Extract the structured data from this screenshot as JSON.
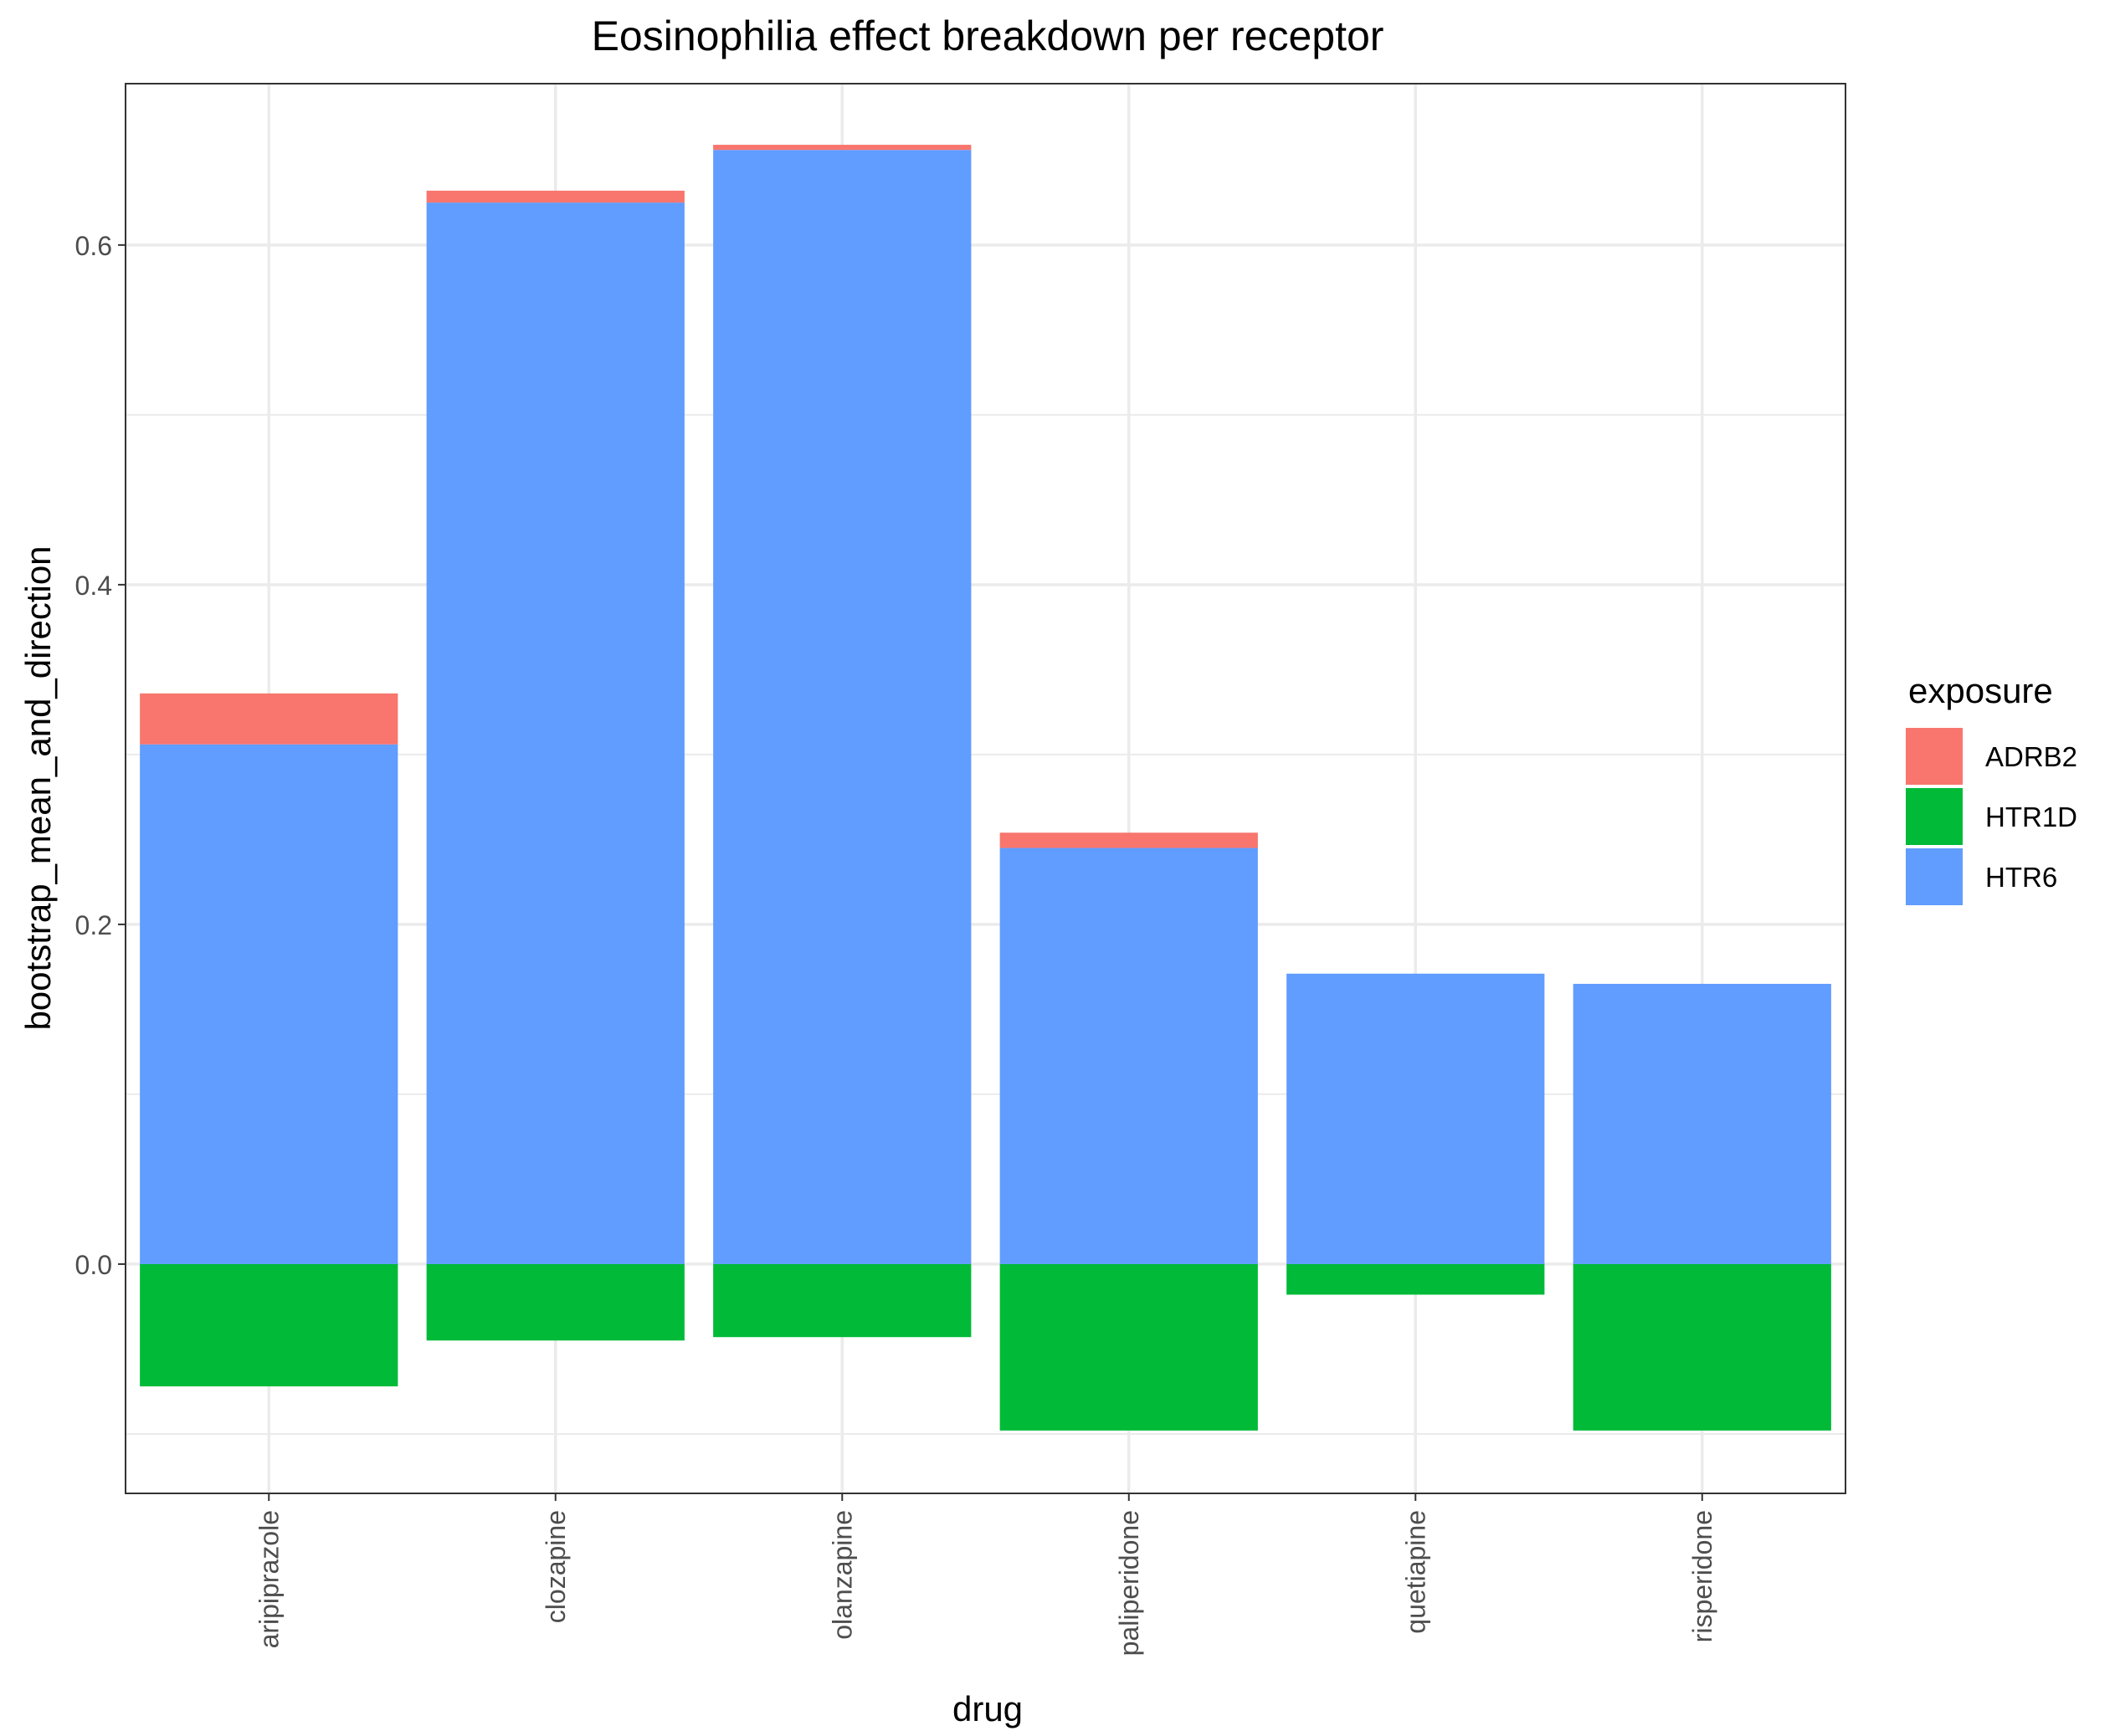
{
  "chart_data": {
    "type": "bar",
    "stacked": true,
    "title": "Eosinophilia effect breakdown per receptor",
    "xlabel": "drug",
    "ylabel": "bootstrap_mean_and_direction",
    "categories": [
      "aripiprazole",
      "clozapine",
      "olanzapine",
      "paliperidone",
      "quetiapine",
      "risperidone"
    ],
    "series": [
      {
        "name": "ADRB2",
        "color": "#F8766D",
        "values": [
          0.03,
          0.007,
          0.003,
          0.009,
          0.0,
          0.0
        ]
      },
      {
        "name": "HTR1D",
        "color": "#00BA38",
        "values": [
          -0.072,
          -0.045,
          -0.043,
          -0.098,
          -0.018,
          -0.098
        ]
      },
      {
        "name": "HTR6",
        "color": "#619CFF",
        "values": [
          0.306,
          0.625,
          0.656,
          0.245,
          0.171,
          0.165
        ]
      }
    ],
    "stack_order_positive": [
      "HTR6",
      "ADRB2"
    ],
    "ylim": [
      -0.135,
      0.695
    ],
    "yticks": [
      0.0,
      0.2,
      0.4,
      0.6
    ],
    "ytick_labels": [
      "0.0",
      "0.2",
      "0.4",
      "0.6"
    ],
    "y_minor_ticks": [
      -0.1,
      0.1,
      0.3,
      0.5
    ],
    "grid": true,
    "legend": {
      "title": "exposure",
      "position": "right"
    }
  }
}
